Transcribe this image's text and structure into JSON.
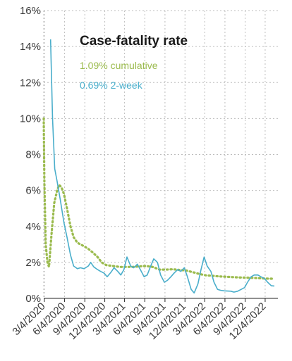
{
  "chart_data": {
    "type": "line",
    "title": "Case-fatality rate",
    "xlabel": "",
    "ylabel": "",
    "ylim": [
      0,
      16
    ],
    "y_ticks": [
      "0%",
      "2%",
      "4%",
      "6%",
      "8%",
      "10%",
      "12%",
      "14%",
      "16%"
    ],
    "x_ticks": [
      "3/4/2020",
      "6/4/2020",
      "9/4/2020",
      "12/4/2020",
      "3/4/2021",
      "6/4/2021",
      "9/4/2021",
      "12/4/2021",
      "3/4/2022",
      "6/4/2022",
      "9/4/2022",
      "12/4/2022"
    ],
    "grid": true,
    "legend": [
      {
        "label": "1.09% cumulative",
        "color": "#9bbb4e"
      },
      {
        "label": "0.69% 2-week",
        "color": "#4aaecb"
      }
    ],
    "series": [
      {
        "name": "1.09% cumulative",
        "color": "#9bbb4e",
        "style": "dotted",
        "points": [
          [
            "2020-03-01",
            10.0
          ],
          [
            "2020-03-04",
            6.5
          ],
          [
            "2020-03-10",
            3.0
          ],
          [
            "2020-03-18",
            2.0
          ],
          [
            "2020-03-25",
            1.75
          ],
          [
            "2020-04-05",
            3.5
          ],
          [
            "2020-04-18",
            5.3
          ],
          [
            "2020-05-01",
            6.0
          ],
          [
            "2020-05-10",
            6.3
          ],
          [
            "2020-05-20",
            6.2
          ],
          [
            "2020-06-01",
            5.8
          ],
          [
            "2020-06-15",
            5.0
          ],
          [
            "2020-07-01",
            4.0
          ],
          [
            "2020-07-15",
            3.4
          ],
          [
            "2020-08-01",
            3.1
          ],
          [
            "2020-08-15",
            3.0
          ],
          [
            "2020-09-01",
            2.9
          ],
          [
            "2020-09-20",
            2.75
          ],
          [
            "2020-10-10",
            2.55
          ],
          [
            "2020-11-01",
            2.3
          ],
          [
            "2020-11-20",
            2.0
          ],
          [
            "2020-12-10",
            1.85
          ],
          [
            "2021-01-10",
            1.8
          ],
          [
            "2021-02-10",
            1.75
          ],
          [
            "2021-03-10",
            1.75
          ],
          [
            "2021-04-10",
            1.75
          ],
          [
            "2021-05-10",
            1.78
          ],
          [
            "2021-06-10",
            1.8
          ],
          [
            "2021-07-10",
            1.75
          ],
          [
            "2021-08-10",
            1.6
          ],
          [
            "2021-09-10",
            1.6
          ],
          [
            "2021-10-10",
            1.62
          ],
          [
            "2021-11-10",
            1.58
          ],
          [
            "2021-12-10",
            1.55
          ],
          [
            "2022-01-10",
            1.45
          ],
          [
            "2022-02-10",
            1.35
          ],
          [
            "2022-03-10",
            1.28
          ],
          [
            "2022-04-10",
            1.25
          ],
          [
            "2022-05-10",
            1.22
          ],
          [
            "2022-06-10",
            1.2
          ],
          [
            "2022-07-10",
            1.18
          ],
          [
            "2022-08-10",
            1.16
          ],
          [
            "2022-09-10",
            1.15
          ],
          [
            "2022-10-10",
            1.14
          ],
          [
            "2022-11-10",
            1.12
          ],
          [
            "2022-12-10",
            1.1
          ],
          [
            "2023-01-15",
            1.09
          ]
        ]
      },
      {
        "name": "0.69% 2-week",
        "color": "#4aaecb",
        "style": "solid",
        "points": [
          [
            "2020-04-01",
            14.4
          ],
          [
            "2020-04-10",
            10.0
          ],
          [
            "2020-04-20",
            7.2
          ],
          [
            "2020-05-01",
            6.5
          ],
          [
            "2020-05-15",
            5.5
          ],
          [
            "2020-06-01",
            4.2
          ],
          [
            "2020-06-15",
            3.4
          ],
          [
            "2020-07-01",
            2.4
          ],
          [
            "2020-07-15",
            1.8
          ],
          [
            "2020-08-01",
            1.65
          ],
          [
            "2020-08-15",
            1.7
          ],
          [
            "2020-09-01",
            1.65
          ],
          [
            "2020-09-20",
            1.8
          ],
          [
            "2020-10-01",
            2.0
          ],
          [
            "2020-10-15",
            1.75
          ],
          [
            "2020-11-01",
            1.6
          ],
          [
            "2020-11-15",
            1.5
          ],
          [
            "2020-12-01",
            1.4
          ],
          [
            "2020-12-15",
            1.2
          ],
          [
            "2021-01-01",
            1.45
          ],
          [
            "2021-01-15",
            1.7
          ],
          [
            "2021-02-01",
            1.5
          ],
          [
            "2021-02-15",
            1.3
          ],
          [
            "2021-03-01",
            1.6
          ],
          [
            "2021-03-15",
            2.3
          ],
          [
            "2021-04-01",
            1.8
          ],
          [
            "2021-04-15",
            1.7
          ],
          [
            "2021-05-01",
            1.9
          ],
          [
            "2021-05-15",
            1.6
          ],
          [
            "2021-06-01",
            1.2
          ],
          [
            "2021-06-15",
            1.3
          ],
          [
            "2021-07-01",
            1.8
          ],
          [
            "2021-07-15",
            2.2
          ],
          [
            "2021-08-01",
            2.0
          ],
          [
            "2021-08-15",
            1.3
          ],
          [
            "2021-09-01",
            0.9
          ],
          [
            "2021-09-15",
            1.0
          ],
          [
            "2021-10-01",
            1.2
          ],
          [
            "2021-10-15",
            1.4
          ],
          [
            "2021-11-01",
            1.6
          ],
          [
            "2021-11-15",
            1.5
          ],
          [
            "2021-12-01",
            1.7
          ],
          [
            "2021-12-15",
            1.2
          ],
          [
            "2022-01-01",
            0.5
          ],
          [
            "2022-01-15",
            0.3
          ],
          [
            "2022-02-01",
            0.8
          ],
          [
            "2022-02-15",
            1.6
          ],
          [
            "2022-03-01",
            2.3
          ],
          [
            "2022-03-15",
            1.8
          ],
          [
            "2022-04-01",
            1.5
          ],
          [
            "2022-04-15",
            0.9
          ],
          [
            "2022-05-01",
            0.5
          ],
          [
            "2022-05-15",
            0.45
          ],
          [
            "2022-06-01",
            0.42
          ],
          [
            "2022-07-01",
            0.4
          ],
          [
            "2022-07-15",
            0.35
          ],
          [
            "2022-08-01",
            0.4
          ],
          [
            "2022-09-01",
            0.6
          ],
          [
            "2022-09-15",
            0.9
          ],
          [
            "2022-10-01",
            1.2
          ],
          [
            "2022-10-15",
            1.3
          ],
          [
            "2022-11-01",
            1.3
          ],
          [
            "2022-11-15",
            1.2
          ],
          [
            "2022-12-01",
            1.1
          ],
          [
            "2022-12-15",
            0.9
          ],
          [
            "2023-01-01",
            0.7
          ],
          [
            "2023-01-15",
            0.69
          ]
        ]
      }
    ]
  }
}
